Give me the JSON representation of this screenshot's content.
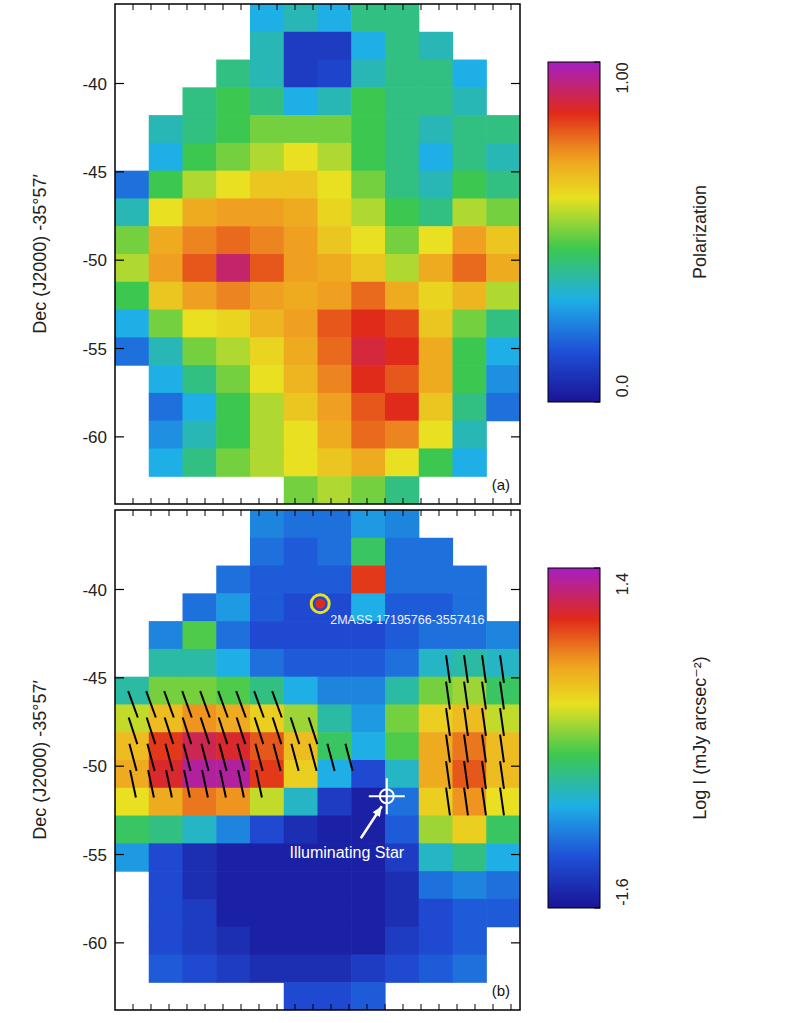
{
  "chart_data": [
    {
      "type": "heatmap",
      "panel": "(a)",
      "ylabel": "Dec (J2000)  -35°57′",
      "xlim": [
        0,
        22.5
      ],
      "ylim": [
        -63.8,
        -35.5
      ],
      "xticks": [
        1,
        2,
        3,
        4,
        5,
        6,
        7,
        8,
        9,
        10,
        11,
        12,
        13,
        14,
        15,
        16,
        17,
        18,
        19,
        20,
        21,
        22
      ],
      "yticks": [
        -60,
        -55,
        -50,
        -45,
        -40
      ],
      "tick_labels": "y",
      "colorbar": {
        "label": "Polarization",
        "range": [
          0,
          1
        ],
        "ticks": [
          {
            "value": 0,
            "label": "0.0"
          },
          {
            "value": 1,
            "label": "1.00"
          }
        ]
      },
      "cells": [
        [
          null,
          null,
          null,
          null,
          0.3,
          0.35,
          0.3,
          0.4,
          0.4,
          null,
          null,
          null
        ],
        [
          null,
          null,
          null,
          null,
          0.35,
          0.1,
          0.1,
          0.3,
          0.4,
          0.35,
          null,
          null
        ],
        [
          null,
          null,
          null,
          0.4,
          0.35,
          0.1,
          0.12,
          0.35,
          0.4,
          0.4,
          0.3,
          null
        ],
        [
          null,
          null,
          0.4,
          0.45,
          0.4,
          0.3,
          0.35,
          0.45,
          0.4,
          0.4,
          0.35,
          null
        ],
        [
          null,
          0.35,
          0.4,
          0.45,
          0.5,
          0.5,
          0.5,
          0.45,
          0.4,
          0.35,
          0.4,
          0.4
        ],
        [
          null,
          0.3,
          0.45,
          0.5,
          0.55,
          0.6,
          0.55,
          0.45,
          0.4,
          0.3,
          0.4,
          0.35
        ],
        [
          0.2,
          0.45,
          0.55,
          0.6,
          0.65,
          0.65,
          0.6,
          0.5,
          0.4,
          0.35,
          0.45,
          0.4
        ],
        [
          0.35,
          0.6,
          0.7,
          0.72,
          0.72,
          0.7,
          0.62,
          0.55,
          0.45,
          0.4,
          0.55,
          0.5
        ],
        [
          0.5,
          0.7,
          0.75,
          0.78,
          0.75,
          0.72,
          0.65,
          0.6,
          0.5,
          0.6,
          0.72,
          0.65
        ],
        [
          0.55,
          0.72,
          0.8,
          0.92,
          0.8,
          0.72,
          0.7,
          0.65,
          0.55,
          0.7,
          0.78,
          0.7
        ],
        [
          0.45,
          0.65,
          0.72,
          0.75,
          0.72,
          0.7,
          0.72,
          0.78,
          0.7,
          0.62,
          0.68,
          0.55
        ],
        [
          0.3,
          0.5,
          0.6,
          0.62,
          0.68,
          0.72,
          0.8,
          0.85,
          0.82,
          0.65,
          0.5,
          0.4
        ],
        [
          0.2,
          0.35,
          0.5,
          0.55,
          0.62,
          0.7,
          0.78,
          0.88,
          0.85,
          0.7,
          0.45,
          0.3
        ],
        [
          null,
          0.3,
          0.4,
          0.5,
          0.6,
          0.68,
          0.75,
          0.85,
          0.8,
          0.7,
          0.45,
          0.25
        ],
        [
          null,
          0.2,
          0.3,
          0.45,
          0.55,
          0.65,
          0.72,
          0.8,
          0.85,
          0.65,
          0.4,
          0.2
        ],
        [
          null,
          0.25,
          0.35,
          0.45,
          0.55,
          0.6,
          0.7,
          0.78,
          0.75,
          0.6,
          0.35,
          null
        ],
        [
          null,
          0.3,
          0.4,
          0.5,
          0.55,
          0.6,
          0.65,
          0.7,
          0.6,
          0.45,
          0.3,
          null
        ],
        [
          null,
          null,
          null,
          null,
          null,
          0.5,
          0.55,
          0.5,
          0.4,
          null,
          null,
          null
        ]
      ]
    },
    {
      "type": "heatmap",
      "panel": "(b)",
      "ylabel": "Dec (J2000)  -35°57′",
      "xlim": [
        0,
        22.5
      ],
      "ylim": [
        -63.8,
        -35.5
      ],
      "xticks": [
        1,
        2,
        3,
        4,
        5,
        6,
        7,
        8,
        9,
        10,
        11,
        12,
        13,
        14,
        15,
        16,
        17,
        18,
        19,
        20,
        21,
        22
      ],
      "yticks": [
        -60,
        -55,
        -50,
        -45,
        -40
      ],
      "tick_labels": "y",
      "colorbar": {
        "label": "Log I (mJy arcsec⁻²)",
        "range": [
          -1.6,
          1.4
        ],
        "ticks": [
          -1.6,
          1.4
        ]
      },
      "cells": [
        [
          null,
          null,
          null,
          null,
          -0.9,
          -1.0,
          -1.0,
          -0.8,
          -0.9,
          null,
          null,
          null
        ],
        [
          null,
          null,
          null,
          null,
          -1.0,
          -1.1,
          -1.0,
          -0.3,
          -1.0,
          -1.0,
          null,
          null
        ],
        [
          null,
          null,
          null,
          -1.0,
          -1.1,
          -1.1,
          -1.1,
          0.9,
          -1.0,
          -1.0,
          -1.0,
          null
        ],
        [
          null,
          null,
          -1.0,
          -0.8,
          -1.1,
          -1.2,
          -1.2,
          -0.7,
          -1.1,
          -1.1,
          -1.0,
          null
        ],
        [
          null,
          -0.9,
          -0.2,
          -1.0,
          -1.2,
          -1.2,
          -1.2,
          -1.2,
          -1.1,
          -1.0,
          -1.0,
          -0.9
        ],
        [
          null,
          -0.5,
          -0.5,
          -0.7,
          -1.0,
          -1.1,
          -1.1,
          -1.1,
          -1.0,
          -0.6,
          -0.5,
          -0.6
        ],
        [
          -0.5,
          -0.1,
          -0.1,
          -0.2,
          -0.4,
          -0.7,
          -0.9,
          -0.9,
          -0.5,
          -0.1,
          0.0,
          -0.3
        ],
        [
          0.1,
          0.4,
          0.6,
          0.5,
          0.3,
          0.0,
          -0.5,
          -0.8,
          -0.1,
          0.3,
          0.4,
          0.1
        ],
        [
          0.4,
          0.9,
          1.1,
          1.0,
          0.8,
          0.4,
          -0.3,
          -0.7,
          -0.2,
          0.5,
          0.7,
          0.4
        ],
        [
          0.5,
          1.0,
          1.3,
          1.3,
          0.9,
          0.3,
          -0.7,
          -1.2,
          -0.6,
          0.5,
          0.8,
          0.4
        ],
        [
          0.2,
          0.5,
          0.7,
          0.6,
          0.1,
          -0.6,
          -1.3,
          -1.5,
          -1.0,
          0.3,
          0.6,
          0.2
        ],
        [
          -0.3,
          -0.4,
          -0.6,
          -0.9,
          -1.2,
          -1.4,
          -1.5,
          -1.5,
          -1.1,
          0.0,
          0.3,
          -0.3
        ],
        [
          -0.8,
          -1.2,
          -1.4,
          -1.5,
          -1.5,
          -1.5,
          -1.5,
          -1.5,
          -1.3,
          -0.6,
          -0.4,
          -0.7
        ],
        [
          null,
          -1.2,
          -1.4,
          -1.5,
          -1.5,
          -1.5,
          -1.5,
          -1.5,
          -1.4,
          -1.0,
          -0.9,
          -1.0
        ],
        [
          null,
          -1.2,
          -1.3,
          -1.5,
          -1.5,
          -1.5,
          -1.5,
          -1.5,
          -1.4,
          -1.2,
          -1.1,
          -1.1
        ],
        [
          null,
          -1.2,
          -1.3,
          -1.4,
          -1.5,
          -1.5,
          -1.5,
          -1.5,
          -1.3,
          -1.2,
          -1.1,
          null
        ],
        [
          null,
          -1.1,
          -1.2,
          -1.3,
          -1.4,
          -1.4,
          -1.4,
          -1.3,
          -1.2,
          -1.1,
          -1.0,
          null
        ],
        [
          null,
          null,
          null,
          null,
          null,
          -1.2,
          -1.2,
          -1.1,
          null,
          null,
          null,
          null
        ]
      ],
      "vectors": {
        "x": [
          1,
          2,
          3,
          4,
          5,
          6,
          7,
          8,
          9,
          1,
          2,
          3,
          4,
          5,
          6,
          7,
          8,
          9,
          10,
          11,
          1,
          2,
          3,
          4,
          5,
          6,
          7,
          8,
          9,
          10,
          11,
          12,
          13,
          1,
          2,
          3,
          4,
          5,
          6,
          7,
          8,
          18.5,
          19.5,
          20.5,
          21.5,
          18.5,
          19.5,
          20.5,
          21.5,
          18.5,
          19.5,
          20.5,
          21.5,
          18.5,
          19.5,
          20.5,
          21.5,
          18.5,
          19.5,
          20.5,
          21.5,
          18.5,
          19.5,
          20.5,
          21.5
        ],
        "y": [
          -46.5,
          -46.5,
          -46.5,
          -46.5,
          -46.5,
          -46.5,
          -46.5,
          -46.5,
          -46.5,
          -48,
          -48,
          -48,
          -48,
          -48,
          -48,
          -48,
          -48,
          -48,
          -48,
          -48,
          -49.5,
          -49.5,
          -49.5,
          -49.5,
          -49.5,
          -49.5,
          -49.5,
          -49.5,
          -49.5,
          -49.5,
          -49.5,
          -49.5,
          -49.5,
          -51,
          -51,
          -51,
          -51,
          -51,
          -51,
          -51,
          -51,
          -44.5,
          -44.5,
          -44.5,
          -44.5,
          -46,
          -46,
          -46,
          -46,
          -47.5,
          -47.5,
          -47.5,
          -47.5,
          -49,
          -49,
          -49,
          -49,
          -50.5,
          -50.5,
          -50.5,
          -50.5,
          -52,
          -52,
          -52,
          -52
        ],
        "angle": [
          -20,
          -20,
          -20,
          -20,
          -20,
          -20,
          -20,
          -20,
          -20,
          -18,
          -18,
          -18,
          -18,
          -18,
          -18,
          -18,
          -18,
          -18,
          -18,
          -18,
          -15,
          -15,
          -15,
          -15,
          -15,
          -15,
          -15,
          -15,
          -15,
          -15,
          -15,
          -15,
          -15,
          -12,
          -12,
          -12,
          -12,
          -12,
          -12,
          -12,
          -12,
          -8,
          -8,
          -8,
          -8,
          -8,
          -8,
          -8,
          -8,
          -8,
          -8,
          -8,
          -8,
          -8,
          -8,
          -8,
          -8,
          -8,
          -8,
          -8,
          -8,
          -8,
          -8,
          -8,
          -8
        ]
      },
      "stars": [
        {
          "label": "2MASS 17195766-3557416",
          "x": 11.4,
          "y": -40.8,
          "marker": "dot"
        },
        {
          "label": "Illuminating Star",
          "x": 15.1,
          "y": -51.7,
          "marker": "cross"
        }
      ]
    }
  ]
}
